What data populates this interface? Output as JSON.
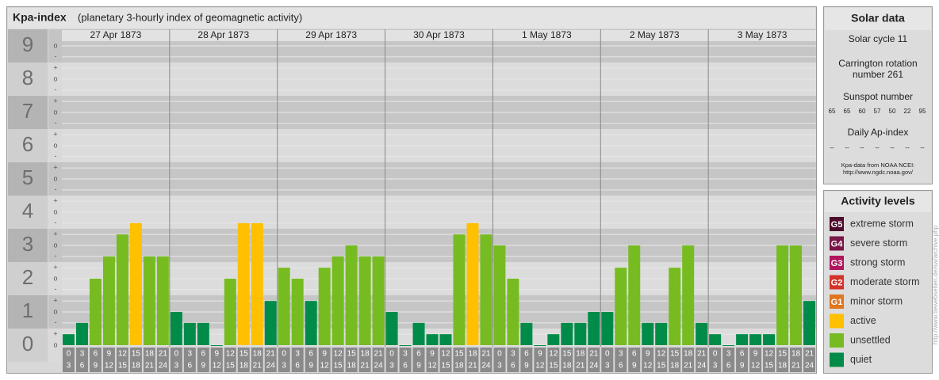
{
  "header": {
    "title": "Kpa-index",
    "subtitle": "(planetary 3-hourly index of geomagnetic activity)"
  },
  "chart_data": {
    "type": "bar",
    "ylim": [
      0,
      9.5
    ],
    "yticks": [
      0,
      1,
      2,
      3,
      4,
      5,
      6,
      7,
      8,
      9
    ],
    "minor_ticks": [
      {
        "value": 0,
        "label": "o"
      },
      {
        "value": 0.33,
        "label": "+"
      },
      {
        "value": 0.67,
        "label": "-"
      },
      {
        "value": 1,
        "label": "o"
      },
      {
        "value": 1.33,
        "label": "+"
      },
      {
        "value": 1.67,
        "label": "-"
      },
      {
        "value": 2,
        "label": "o"
      },
      {
        "value": 2.33,
        "label": "+"
      },
      {
        "value": 2.67,
        "label": "-"
      },
      {
        "value": 3,
        "label": "o"
      },
      {
        "value": 3.33,
        "label": "+"
      },
      {
        "value": 3.67,
        "label": "-"
      },
      {
        "value": 4,
        "label": "o"
      },
      {
        "value": 4.33,
        "label": "+"
      },
      {
        "value": 4.67,
        "label": "-"
      },
      {
        "value": 5,
        "label": "o"
      },
      {
        "value": 5.33,
        "label": "+"
      },
      {
        "value": 5.67,
        "label": "-"
      },
      {
        "value": 6,
        "label": "o"
      },
      {
        "value": 6.33,
        "label": "+"
      },
      {
        "value": 6.67,
        "label": "-"
      },
      {
        "value": 7,
        "label": "o"
      },
      {
        "value": 7.33,
        "label": "+"
      },
      {
        "value": 7.67,
        "label": "-"
      },
      {
        "value": 8,
        "label": "o"
      },
      {
        "value": 8.33,
        "label": "+"
      },
      {
        "value": 8.67,
        "label": "-"
      },
      {
        "value": 9,
        "label": "o"
      }
    ],
    "hours": [
      "0",
      "3",
      "6",
      "9",
      "12",
      "15",
      "18",
      "21",
      "24"
    ],
    "days": [
      {
        "date": "27 Apr 1873",
        "values": [
          0.33,
          0.67,
          2,
          2.67,
          3.33,
          3.67,
          2.67,
          2.67
        ],
        "colors": [
          "#008c48",
          "#008c48",
          "#76bc21",
          "#76bc21",
          "#76bc21",
          "#ffc000",
          "#76bc21",
          "#76bc21"
        ]
      },
      {
        "date": "28 Apr 1873",
        "values": [
          1,
          0.67,
          0.67,
          0,
          2,
          3.67,
          3.67,
          1.33
        ],
        "colors": [
          "#008c48",
          "#008c48",
          "#008c48",
          "#008c48",
          "#76bc21",
          "#ffc000",
          "#ffc000",
          "#008c48"
        ]
      },
      {
        "date": "29 Apr 1873",
        "values": [
          2.33,
          2,
          1.33,
          2.33,
          2.67,
          3,
          2.67,
          2.67
        ],
        "colors": [
          "#76bc21",
          "#76bc21",
          "#008c48",
          "#76bc21",
          "#76bc21",
          "#76bc21",
          "#76bc21",
          "#76bc21"
        ]
      },
      {
        "date": "30 Apr 1873",
        "values": [
          1,
          0,
          0.67,
          0.33,
          0.33,
          3.33,
          3.67,
          3.33
        ],
        "colors": [
          "#008c48",
          "#008c48",
          "#008c48",
          "#008c48",
          "#008c48",
          "#76bc21",
          "#ffc000",
          "#76bc21"
        ]
      },
      {
        "date": "1 May 1873",
        "values": [
          3,
          2,
          0.67,
          0,
          0.33,
          0.67,
          0.67,
          1
        ],
        "colors": [
          "#76bc21",
          "#76bc21",
          "#008c48",
          "#008c48",
          "#008c48",
          "#008c48",
          "#008c48",
          "#008c48"
        ]
      },
      {
        "date": "2 May 1873",
        "values": [
          1,
          2.33,
          3,
          0.67,
          0.67,
          2.33,
          3,
          0.67
        ],
        "colors": [
          "#008c48",
          "#76bc21",
          "#76bc21",
          "#008c48",
          "#008c48",
          "#76bc21",
          "#76bc21",
          "#008c48"
        ]
      },
      {
        "date": "3 May 1873",
        "values": [
          0.33,
          0,
          0.33,
          0.33,
          0.33,
          3,
          3,
          1.33
        ],
        "colors": [
          "#008c48",
          "#008c48",
          "#008c48",
          "#008c48",
          "#008c48",
          "#76bc21",
          "#76bc21",
          "#008c48"
        ]
      }
    ]
  },
  "solar": {
    "title": "Solar data",
    "cycle": "Solar cycle 11",
    "carrington": [
      "Carrington rotation",
      "number 261"
    ],
    "sunspot_title": "Sunspot number",
    "sunspots": [
      "65",
      "65",
      "60",
      "57",
      "50",
      "22",
      "95"
    ],
    "ap_title": "Daily Ap-index",
    "ap": [
      "--",
      "--",
      "--",
      "--",
      "--",
      "--",
      "--"
    ],
    "source": [
      "Kpa-data from NOAA NCEI:",
      "http://www.ngdc.noaa.gov/"
    ]
  },
  "legend": {
    "title": "Activity levels",
    "items": [
      {
        "badge": "G5",
        "label": "extreme storm",
        "color": "#4e0a2a"
      },
      {
        "badge": "G4",
        "label": "severe storm",
        "color": "#7a1548"
      },
      {
        "badge": "G3",
        "label": "strong storm",
        "color": "#b0155e"
      },
      {
        "badge": "G2",
        "label": "moderate storm",
        "color": "#d4322a"
      },
      {
        "badge": "G1",
        "label": "minor storm",
        "color": "#e0761e"
      },
      {
        "label": "active",
        "color": "#ffc000"
      },
      {
        "label": "unsettled",
        "color": "#76bc21"
      },
      {
        "label": "quiet",
        "color": "#008c48"
      }
    ]
  },
  "side_note": "http://www.tiewebseiten.de/sw/archive.php"
}
